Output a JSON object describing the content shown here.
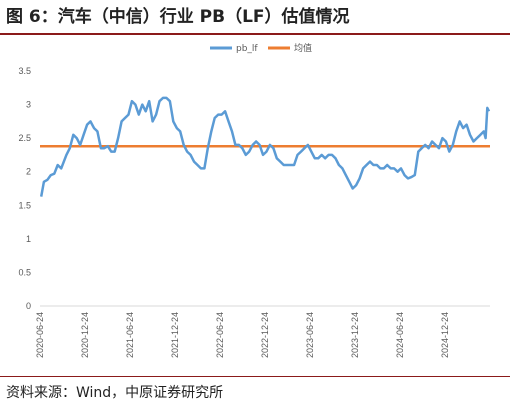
{
  "title": "图 6：汽车（中信）行业 PB（LF）估值情况",
  "source": "资料来源：Wind，中原证券研究所",
  "chart_data": {
    "type": "line",
    "ylim": [
      0,
      3.5
    ],
    "yticks": [
      "0",
      "0.5",
      "1",
      "1.5",
      "2",
      "2.5",
      "3",
      "3.5"
    ],
    "xticks": [
      "2020-06-24",
      "2020-12-24",
      "2021-06-24",
      "2021-12-24",
      "2022-06-24",
      "2022-12-24",
      "2023-06-24",
      "2023-12-24",
      "2024-06-24",
      "2024-12-24"
    ],
    "grid": false,
    "legend": "top",
    "series": [
      {
        "name": "pb_lf",
        "color": "#5b9bd5",
        "points": [
          [
            "2020-06-29",
            1.63
          ],
          [
            "2020-07-10",
            1.85
          ],
          [
            "2020-07-24",
            1.88
          ],
          [
            "2020-08-07",
            1.95
          ],
          [
            "2020-08-21",
            1.97
          ],
          [
            "2020-09-04",
            2.1
          ],
          [
            "2020-09-18",
            2.05
          ],
          [
            "2020-10-09",
            2.25
          ],
          [
            "2020-10-23",
            2.35
          ],
          [
            "2020-11-06",
            2.55
          ],
          [
            "2020-11-20",
            2.5
          ],
          [
            "2020-12-04",
            2.4
          ],
          [
            "2020-12-18",
            2.55
          ],
          [
            "2021-01-01",
            2.7
          ],
          [
            "2021-01-15",
            2.75
          ],
          [
            "2021-01-29",
            2.65
          ],
          [
            "2021-02-12",
            2.6
          ],
          [
            "2021-02-26",
            2.35
          ],
          [
            "2021-03-12",
            2.35
          ],
          [
            "2021-03-26",
            2.38
          ],
          [
            "2021-04-09",
            2.3
          ],
          [
            "2021-04-23",
            2.3
          ],
          [
            "2021-05-07",
            2.5
          ],
          [
            "2021-05-21",
            2.75
          ],
          [
            "2021-06-04",
            2.8
          ],
          [
            "2021-06-18",
            2.85
          ],
          [
            "2021-07-02",
            3.05
          ],
          [
            "2021-07-16",
            3.0
          ],
          [
            "2021-07-30",
            2.85
          ],
          [
            "2021-08-13",
            3.0
          ],
          [
            "2021-08-27",
            2.9
          ],
          [
            "2021-09-10",
            3.05
          ],
          [
            "2021-09-24",
            2.75
          ],
          [
            "2021-10-08",
            2.85
          ],
          [
            "2021-10-22",
            3.05
          ],
          [
            "2021-11-05",
            3.1
          ],
          [
            "2021-11-19",
            3.1
          ],
          [
            "2021-12-03",
            3.05
          ],
          [
            "2021-12-17",
            2.75
          ],
          [
            "2021-12-31",
            2.65
          ],
          [
            "2022-01-14",
            2.6
          ],
          [
            "2022-01-28",
            2.4
          ],
          [
            "2022-02-11",
            2.3
          ],
          [
            "2022-02-25",
            2.25
          ],
          [
            "2022-03-11",
            2.15
          ],
          [
            "2022-03-25",
            2.1
          ],
          [
            "2022-04-08",
            2.05
          ],
          [
            "2022-04-22",
            2.05
          ],
          [
            "2022-05-06",
            2.35
          ],
          [
            "2022-05-20",
            2.6
          ],
          [
            "2022-06-03",
            2.8
          ],
          [
            "2022-06-17",
            2.85
          ],
          [
            "2022-07-01",
            2.85
          ],
          [
            "2022-07-15",
            2.9
          ],
          [
            "2022-07-29",
            2.75
          ],
          [
            "2022-08-12",
            2.6
          ],
          [
            "2022-08-26",
            2.4
          ],
          [
            "2022-09-09",
            2.4
          ],
          [
            "2022-09-23",
            2.35
          ],
          [
            "2022-10-07",
            2.25
          ],
          [
            "2022-10-21",
            2.3
          ],
          [
            "2022-11-04",
            2.4
          ],
          [
            "2022-11-18",
            2.45
          ],
          [
            "2022-12-02",
            2.4
          ],
          [
            "2022-12-16",
            2.25
          ],
          [
            "2022-12-30",
            2.3
          ],
          [
            "2023-01-13",
            2.4
          ],
          [
            "2023-01-27",
            2.35
          ],
          [
            "2023-02-10",
            2.2
          ],
          [
            "2023-02-24",
            2.15
          ],
          [
            "2023-03-10",
            2.1
          ],
          [
            "2023-03-24",
            2.1
          ],
          [
            "2023-04-07",
            2.1
          ],
          [
            "2023-04-21",
            2.1
          ],
          [
            "2023-05-05",
            2.25
          ],
          [
            "2023-05-19",
            2.3
          ],
          [
            "2023-06-02",
            2.35
          ],
          [
            "2023-06-16",
            2.4
          ],
          [
            "2023-06-30",
            2.3
          ],
          [
            "2023-07-14",
            2.2
          ],
          [
            "2023-07-28",
            2.2
          ],
          [
            "2023-08-11",
            2.25
          ],
          [
            "2023-08-25",
            2.2
          ],
          [
            "2023-09-08",
            2.25
          ],
          [
            "2023-09-22",
            2.25
          ],
          [
            "2023-10-06",
            2.2
          ],
          [
            "2023-10-20",
            2.1
          ],
          [
            "2023-11-03",
            2.05
          ],
          [
            "2023-11-17",
            1.95
          ],
          [
            "2023-12-01",
            1.85
          ],
          [
            "2023-12-15",
            1.75
          ],
          [
            "2023-12-29",
            1.8
          ],
          [
            "2024-01-12",
            1.9
          ],
          [
            "2024-01-26",
            2.05
          ],
          [
            "2024-02-09",
            2.1
          ],
          [
            "2024-02-23",
            2.15
          ],
          [
            "2024-03-08",
            2.1
          ],
          [
            "2024-03-22",
            2.1
          ],
          [
            "2024-04-05",
            2.05
          ],
          [
            "2024-04-19",
            2.05
          ],
          [
            "2024-05-03",
            2.1
          ],
          [
            "2024-05-17",
            2.05
          ],
          [
            "2024-05-31",
            2.05
          ],
          [
            "2024-06-14",
            2.0
          ],
          [
            "2024-06-28",
            2.05
          ],
          [
            "2024-07-12",
            1.95
          ],
          [
            "2024-07-26",
            1.9
          ],
          [
            "2024-08-09",
            1.92
          ],
          [
            "2024-08-23",
            1.95
          ],
          [
            "2024-09-06",
            2.3
          ],
          [
            "2024-09-20",
            2.35
          ],
          [
            "2024-10-04",
            2.4
          ],
          [
            "2024-10-18",
            2.35
          ],
          [
            "2024-11-01",
            2.45
          ],
          [
            "2024-11-15",
            2.4
          ],
          [
            "2024-11-29",
            2.35
          ],
          [
            "2024-12-13",
            2.5
          ],
          [
            "2024-12-27",
            2.45
          ],
          [
            "2025-01-10",
            2.3
          ],
          [
            "2025-01-24",
            2.4
          ],
          [
            "2025-02-07",
            2.6
          ],
          [
            "2025-02-21",
            2.75
          ],
          [
            "2025-03-07",
            2.65
          ],
          [
            "2025-03-21",
            2.7
          ],
          [
            "2025-04-04",
            2.55
          ],
          [
            "2025-04-18",
            2.45
          ],
          [
            "2025-05-02",
            2.5
          ],
          [
            "2025-05-16",
            2.55
          ],
          [
            "2025-05-30",
            2.6
          ],
          [
            "2025-06-06",
            2.5
          ],
          [
            "2025-06-13",
            2.95
          ],
          [
            "2025-06-20",
            2.9
          ]
        ]
      },
      {
        "name": "均值",
        "color": "#ed7d31",
        "constant": 2.38
      }
    ]
  }
}
